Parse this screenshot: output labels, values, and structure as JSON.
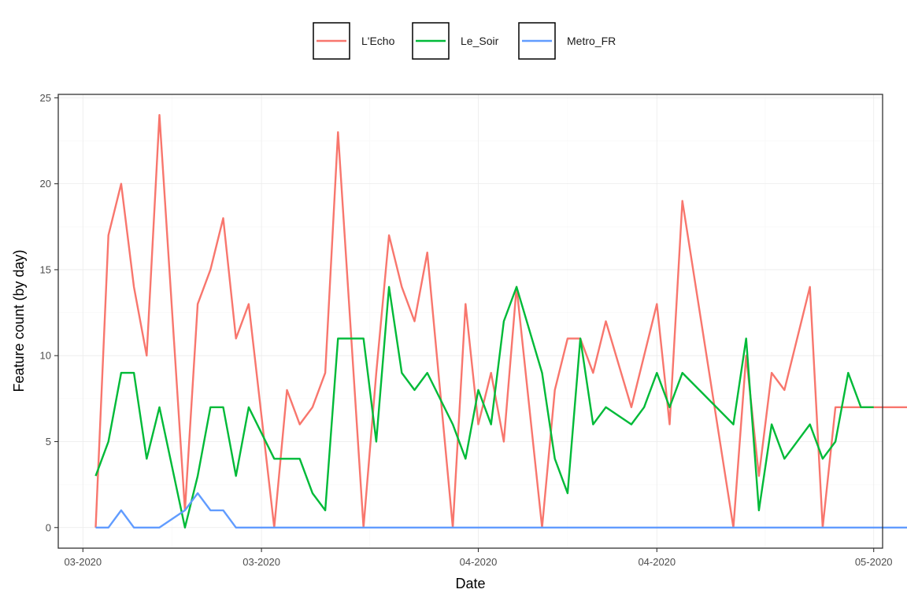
{
  "chart_data": {
    "type": "line",
    "xlabel": "Date",
    "ylabel": "Feature count (by day)",
    "x_tick_labels": [
      "03-2020",
      "03-2020",
      "04-2020",
      "04-2020",
      "05-2020"
    ],
    "y_tick_labels": [
      "0",
      "5",
      "10",
      "15",
      "20",
      "25"
    ],
    "ylim": [
      -1.2,
      25.2
    ],
    "grid": true,
    "legend_position": "top",
    "series": [
      {
        "name": "L'Echo",
        "color": "#F8766D",
        "x": [
          "2020-02-24",
          "2020-02-25",
          "2020-02-26",
          "2020-02-27",
          "2020-02-28",
          "2020-02-29",
          "2020-03-02",
          "2020-03-03",
          "2020-03-04",
          "2020-03-05",
          "2020-03-06",
          "2020-03-07",
          "2020-03-09",
          "2020-03-10",
          "2020-03-11",
          "2020-03-12",
          "2020-03-13",
          "2020-03-14",
          "2020-03-16",
          "2020-03-17",
          "2020-03-18",
          "2020-03-19",
          "2020-03-20",
          "2020-03-21",
          "2020-03-23",
          "2020-03-24",
          "2020-03-25",
          "2020-03-26",
          "2020-03-27",
          "2020-03-28",
          "2020-03-30",
          "2020-03-31",
          "2020-04-01",
          "2020-04-02",
          "2020-04-03",
          "2020-04-04",
          "2020-04-06",
          "2020-04-07",
          "2020-04-08",
          "2020-04-09",
          "2020-04-10",
          "2020-04-14",
          "2020-04-15",
          "2020-04-16",
          "2020-04-17",
          "2020-04-18",
          "2020-04-20",
          "2020-04-21",
          "2020-04-22",
          "2020-04-23",
          "2020-04-24",
          "2020-04-25",
          "2020-04-27",
          "2020-04-28",
          "2020-04-29",
          "2020-04-30"
        ],
        "values": [
          0,
          17,
          20,
          14,
          10,
          24,
          1,
          13,
          15,
          18,
          11,
          13,
          0,
          8,
          6,
          7,
          9,
          23,
          0,
          9,
          17,
          14,
          12,
          16,
          0,
          13,
          6,
          9,
          5,
          14,
          0,
          8,
          11,
          11,
          9,
          12,
          7,
          10,
          13,
          6,
          19,
          0,
          10,
          3,
          9,
          8,
          14,
          0,
          7,
          7,
          7,
          7,
          7,
          7,
          7,
          7
        ]
      },
      {
        "name": "Le_Soir",
        "color": "#00BA38",
        "x": [
          "2020-02-24",
          "2020-02-25",
          "2020-02-26",
          "2020-02-27",
          "2020-02-28",
          "2020-02-29",
          "2020-03-02",
          "2020-03-03",
          "2020-03-04",
          "2020-03-05",
          "2020-03-06",
          "2020-03-07",
          "2020-03-09",
          "2020-03-10",
          "2020-03-11",
          "2020-03-12",
          "2020-03-13",
          "2020-03-14",
          "2020-03-16",
          "2020-03-17",
          "2020-03-18",
          "2020-03-19",
          "2020-03-20",
          "2020-03-21",
          "2020-03-23",
          "2020-03-24",
          "2020-03-25",
          "2020-03-26",
          "2020-03-27",
          "2020-03-28",
          "2020-03-30",
          "2020-03-31",
          "2020-04-01",
          "2020-04-02",
          "2020-04-03",
          "2020-04-04",
          "2020-04-06",
          "2020-04-07",
          "2020-04-08",
          "2020-04-09",
          "2020-04-10",
          "2020-04-14",
          "2020-04-15",
          "2020-04-16",
          "2020-04-17",
          "2020-04-18",
          "2020-04-20",
          "2020-04-21",
          "2020-04-22",
          "2020-04-23",
          "2020-04-24",
          "2020-04-25"
        ],
        "values": [
          3,
          5,
          9,
          9,
          4,
          7,
          0,
          3,
          7,
          7,
          3,
          7,
          4,
          4,
          4,
          2,
          1,
          11,
          11,
          5,
          14,
          9,
          8,
          9,
          6,
          4,
          8,
          6,
          12,
          14,
          9,
          4,
          2,
          11,
          6,
          7,
          6,
          7,
          9,
          7,
          9,
          6,
          11,
          1,
          6,
          4,
          6,
          4,
          5,
          9,
          7,
          7
        ]
      },
      {
        "name": "Metro_FR",
        "color": "#619CFF",
        "x": [
          "2020-02-24",
          "2020-02-25",
          "2020-02-26",
          "2020-02-27",
          "2020-02-28",
          "2020-02-29",
          "2020-03-02",
          "2020-03-03",
          "2020-03-04",
          "2020-03-05",
          "2020-03-06",
          "2020-04-30"
        ],
        "values": [
          0,
          0,
          1,
          0,
          0,
          0,
          1,
          2,
          1,
          1,
          0,
          0
        ]
      }
    ]
  }
}
